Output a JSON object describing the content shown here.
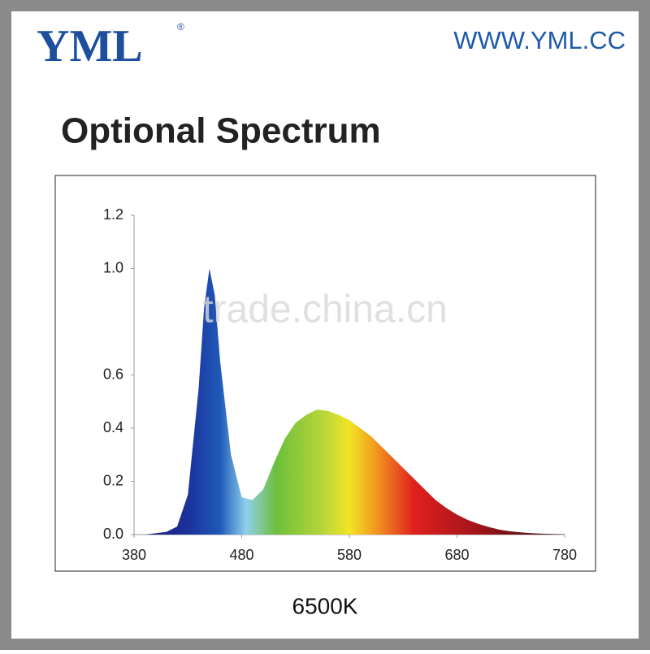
{
  "brand": {
    "logo": "YML",
    "mark": "®",
    "url": "WWW.YML.CC"
  },
  "title": "Optional Spectrum",
  "watermark": "trade.china.cn",
  "chart_data": {
    "type": "area",
    "caption": "6500K",
    "x": [
      380,
      390,
      400,
      410,
      420,
      430,
      440,
      445,
      450,
      455,
      460,
      470,
      480,
      490,
      500,
      510,
      520,
      530,
      540,
      550,
      560,
      570,
      580,
      590,
      600,
      610,
      620,
      630,
      640,
      650,
      660,
      670,
      680,
      690,
      700,
      710,
      720,
      730,
      740,
      750,
      760,
      770,
      780
    ],
    "values": [
      0,
      0,
      0.005,
      0.01,
      0.03,
      0.15,
      0.55,
      0.85,
      1.0,
      0.9,
      0.65,
      0.3,
      0.14,
      0.13,
      0.17,
      0.27,
      0.36,
      0.42,
      0.45,
      0.47,
      0.465,
      0.45,
      0.43,
      0.4,
      0.37,
      0.33,
      0.29,
      0.25,
      0.21,
      0.17,
      0.13,
      0.1,
      0.075,
      0.055,
      0.04,
      0.028,
      0.018,
      0.012,
      0.008,
      0.005,
      0.003,
      0.002,
      0.001
    ],
    "xlim": [
      380,
      780
    ],
    "xticks": [
      380,
      480,
      580,
      680,
      780
    ],
    "ylim": [
      0,
      1.2
    ],
    "yticks": [
      {
        "value": 0,
        "label": "0.0"
      },
      0.2,
      0.4,
      0.6,
      {
        "value": 1,
        "label": "1.0"
      },
      1.2
    ]
  }
}
